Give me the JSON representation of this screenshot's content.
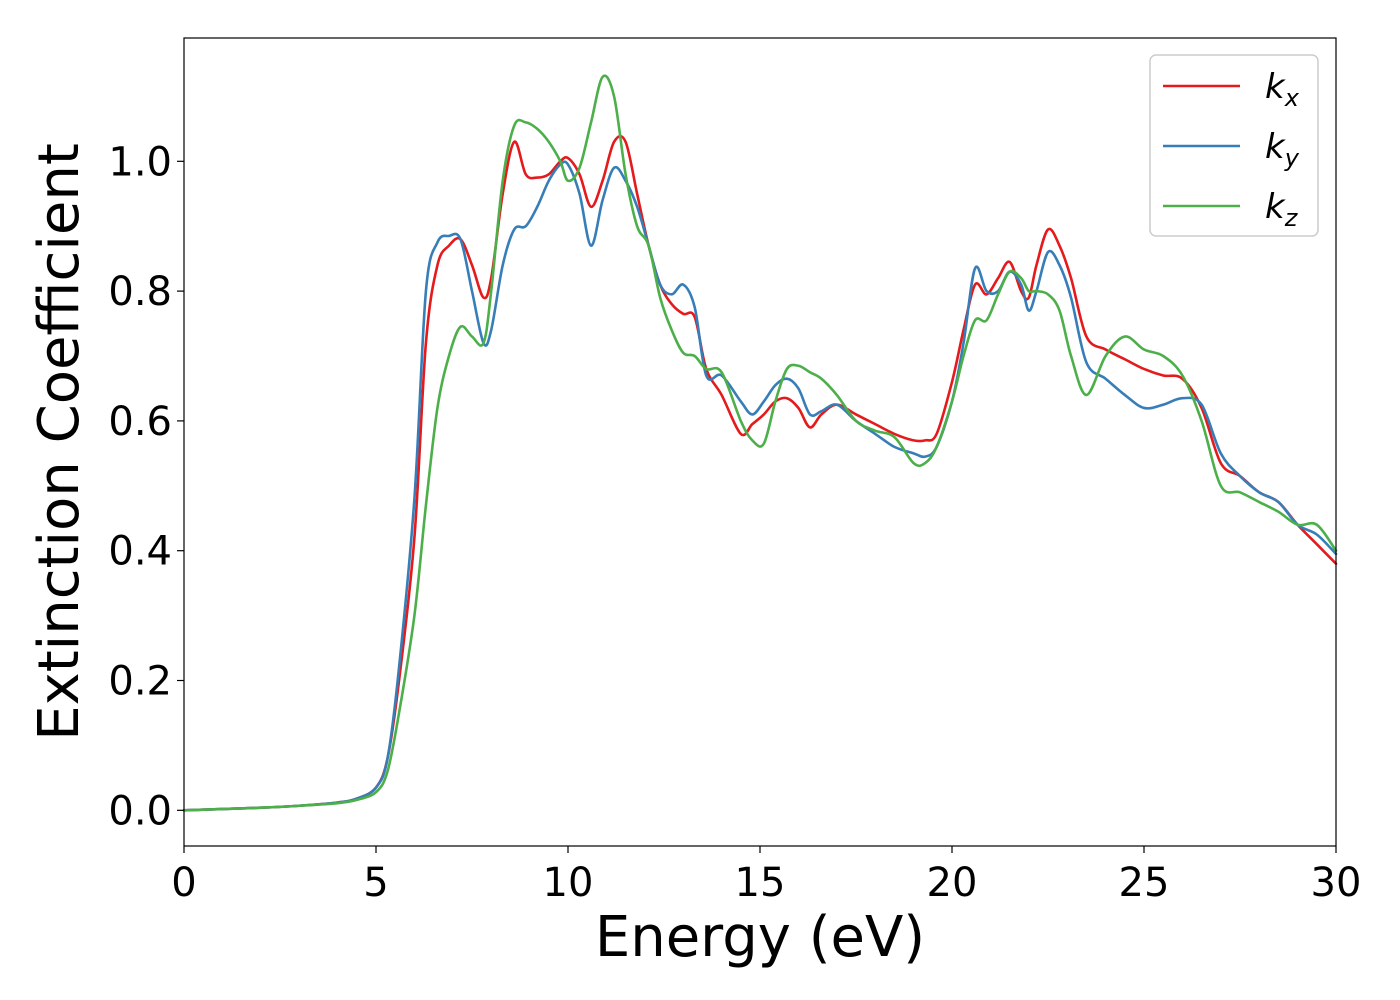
{
  "chart_data": {
    "type": "line",
    "xlabel": "Energy (eV)",
    "ylabel": "Extinction Coefficient",
    "xlim": [
      0,
      30
    ],
    "ylim": [
      -0.055,
      1.19
    ],
    "xticks": [
      0,
      5,
      10,
      15,
      20,
      25,
      30
    ],
    "yticks": [
      0.0,
      0.2,
      0.4,
      0.6,
      0.8,
      1.0
    ],
    "xtick_labels": [
      "0",
      "5",
      "10",
      "15",
      "20",
      "25",
      "30"
    ],
    "ytick_labels": [
      "0.0",
      "0.2",
      "0.4",
      "0.6",
      "0.8",
      "1.0"
    ],
    "grid": false,
    "legend_position": "top-right",
    "series": [
      {
        "name": "k",
        "subscript": "x",
        "color": "#e41a1c",
        "x": [
          0,
          2,
          3,
          4,
          4.5,
          5,
          5.3,
          5.6,
          6.0,
          6.3,
          6.6,
          6.9,
          7.2,
          7.5,
          7.8,
          8.0,
          8.3,
          8.6,
          8.9,
          9.2,
          9.5,
          9.8,
          10.0,
          10.3,
          10.6,
          10.9,
          11.2,
          11.5,
          11.8,
          12.1,
          12.4,
          12.7,
          13.0,
          13.3,
          13.6,
          14.0,
          14.5,
          14.8,
          15.1,
          15.4,
          15.7,
          16.0,
          16.3,
          16.6,
          17.0,
          17.5,
          18.0,
          18.5,
          19.0,
          19.3,
          19.6,
          20.0,
          20.3,
          20.6,
          20.9,
          21.2,
          21.5,
          21.8,
          22.0,
          22.2,
          22.5,
          22.8,
          23.1,
          23.5,
          24.0,
          24.5,
          25.0,
          25.5,
          26.0,
          26.5,
          27.0,
          27.5,
          28.0,
          28.5,
          29.0,
          29.5,
          30.0
        ],
        "y": [
          0.0,
          0.004,
          0.007,
          0.012,
          0.018,
          0.035,
          0.08,
          0.2,
          0.42,
          0.72,
          0.84,
          0.87,
          0.88,
          0.84,
          0.79,
          0.82,
          0.95,
          1.03,
          0.98,
          0.975,
          0.98,
          1.0,
          1.005,
          0.98,
          0.93,
          0.97,
          1.03,
          1.03,
          0.95,
          0.87,
          0.81,
          0.78,
          0.765,
          0.76,
          0.68,
          0.64,
          0.58,
          0.595,
          0.61,
          0.63,
          0.635,
          0.62,
          0.59,
          0.61,
          0.625,
          0.61,
          0.595,
          0.58,
          0.57,
          0.57,
          0.58,
          0.66,
          0.74,
          0.81,
          0.795,
          0.82,
          0.845,
          0.8,
          0.79,
          0.84,
          0.895,
          0.87,
          0.82,
          0.73,
          0.71,
          0.695,
          0.68,
          0.67,
          0.665,
          0.62,
          0.535,
          0.515,
          0.49,
          0.475,
          0.44,
          0.41,
          0.38
        ]
      },
      {
        "name": "k",
        "subscript": "y",
        "color": "#377eb8",
        "x": [
          0,
          2,
          3,
          4,
          4.5,
          5,
          5.3,
          5.6,
          6.0,
          6.3,
          6.6,
          6.9,
          7.2,
          7.5,
          7.8,
          8.0,
          8.3,
          8.6,
          8.9,
          9.2,
          9.5,
          9.8,
          10.0,
          10.3,
          10.6,
          10.9,
          11.2,
          11.5,
          11.8,
          12.1,
          12.4,
          12.7,
          13.0,
          13.3,
          13.6,
          14.0,
          14.5,
          14.8,
          15.1,
          15.4,
          15.7,
          16.0,
          16.3,
          16.6,
          17.0,
          17.5,
          18.0,
          18.5,
          19.0,
          19.3,
          19.6,
          20.0,
          20.3,
          20.6,
          20.9,
          21.2,
          21.5,
          21.8,
          22.0,
          22.2,
          22.5,
          22.8,
          23.1,
          23.5,
          24.0,
          24.5,
          25.0,
          25.5,
          26.0,
          26.5,
          27.0,
          27.5,
          28.0,
          28.5,
          29.0,
          29.5,
          30.0
        ],
        "y": [
          0.0,
          0.004,
          0.007,
          0.012,
          0.018,
          0.035,
          0.08,
          0.22,
          0.48,
          0.8,
          0.875,
          0.885,
          0.88,
          0.8,
          0.72,
          0.74,
          0.84,
          0.895,
          0.9,
          0.93,
          0.97,
          0.995,
          0.995,
          0.95,
          0.87,
          0.94,
          0.99,
          0.97,
          0.93,
          0.87,
          0.81,
          0.795,
          0.81,
          0.775,
          0.67,
          0.67,
          0.63,
          0.61,
          0.63,
          0.655,
          0.665,
          0.65,
          0.61,
          0.615,
          0.625,
          0.6,
          0.58,
          0.56,
          0.55,
          0.545,
          0.56,
          0.63,
          0.72,
          0.835,
          0.8,
          0.8,
          0.83,
          0.81,
          0.77,
          0.8,
          0.86,
          0.84,
          0.79,
          0.69,
          0.665,
          0.64,
          0.62,
          0.625,
          0.635,
          0.625,
          0.55,
          0.515,
          0.49,
          0.475,
          0.44,
          0.425,
          0.395
        ]
      },
      {
        "name": "k",
        "subscript": "z",
        "color": "#4daf4a",
        "x": [
          0,
          2,
          3,
          4,
          4.5,
          5,
          5.3,
          5.6,
          6.0,
          6.3,
          6.6,
          6.9,
          7.2,
          7.5,
          7.8,
          8.0,
          8.3,
          8.6,
          8.9,
          9.2,
          9.5,
          9.8,
          10.0,
          10.3,
          10.6,
          10.9,
          11.2,
          11.5,
          11.8,
          12.1,
          12.4,
          12.7,
          13.0,
          13.3,
          13.6,
          14.0,
          14.5,
          14.8,
          15.1,
          15.4,
          15.7,
          16.0,
          16.3,
          16.6,
          17.0,
          17.5,
          18.0,
          18.5,
          19.0,
          19.3,
          19.6,
          20.0,
          20.3,
          20.6,
          20.9,
          21.2,
          21.5,
          21.8,
          22.0,
          22.2,
          22.5,
          22.8,
          23.1,
          23.5,
          24.0,
          24.5,
          25.0,
          25.5,
          26.0,
          26.5,
          27.0,
          27.5,
          28.0,
          28.5,
          29.0,
          29.5,
          30.0
        ],
        "y": [
          0.0,
          0.004,
          0.007,
          0.011,
          0.016,
          0.028,
          0.06,
          0.15,
          0.3,
          0.47,
          0.62,
          0.7,
          0.745,
          0.73,
          0.72,
          0.8,
          0.97,
          1.055,
          1.06,
          1.05,
          1.03,
          1.0,
          0.97,
          0.99,
          1.06,
          1.13,
          1.1,
          0.98,
          0.9,
          0.87,
          0.79,
          0.74,
          0.705,
          0.7,
          0.68,
          0.675,
          0.6,
          0.57,
          0.565,
          0.63,
          0.68,
          0.685,
          0.675,
          0.665,
          0.64,
          0.6,
          0.585,
          0.575,
          0.535,
          0.535,
          0.56,
          0.63,
          0.7,
          0.755,
          0.755,
          0.795,
          0.83,
          0.82,
          0.8,
          0.8,
          0.795,
          0.77,
          0.7,
          0.64,
          0.7,
          0.73,
          0.71,
          0.7,
          0.67,
          0.6,
          0.5,
          0.49,
          0.475,
          0.46,
          0.44,
          0.44,
          0.4
        ]
      }
    ]
  }
}
